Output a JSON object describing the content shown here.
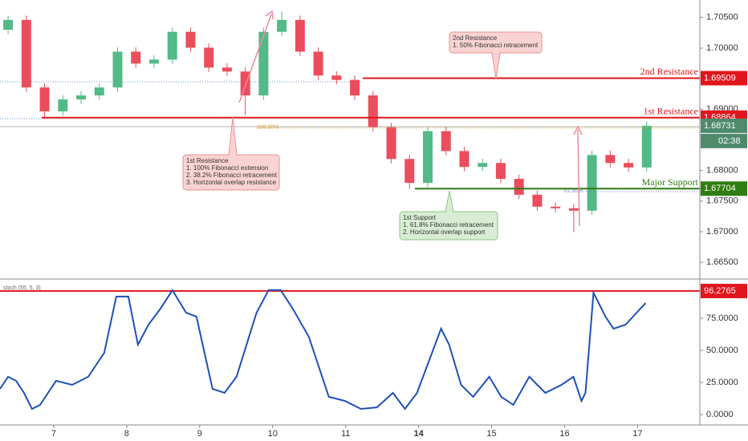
{
  "chart_data": [
    {
      "type": "candlestick",
      "x": [
        -0.625,
        -0.375,
        -0.125,
        0.125,
        0.375,
        0.625,
        0.875,
        1.125,
        1.375,
        1.625,
        1.875,
        2.125,
        2.375,
        2.625,
        2.875,
        3.125,
        3.375,
        3.625,
        3.875,
        4.125,
        4.375,
        4.625,
        4.875,
        5.125,
        5.375,
        5.625,
        5.875,
        6.125,
        6.375,
        6.625,
        6.875,
        7.125,
        7.375,
        7.625,
        7.875,
        8.125
      ],
      "open": [
        1.703,
        1.70461,
        1.69357,
        1.68967,
        1.69162,
        1.69227,
        1.69357,
        1.69942,
        1.69747,
        1.69812,
        1.70266,
        1.70007,
        1.69682,
        1.69617,
        1.69227,
        1.70266,
        1.70461,
        1.69942,
        1.69552,
        1.6948,
        1.69227,
        1.68708,
        1.68188,
        1.67798,
        1.68643,
        1.68318,
        1.68058,
        1.68123,
        1.67864,
        1.67604,
        1.67409,
        1.67383,
        1.67344,
        1.68253,
        1.68123,
        1.6805
      ],
      "high": [
        1.70531,
        1.70531,
        1.69427,
        1.69232,
        1.69297,
        1.69427,
        1.70012,
        1.70012,
        1.69882,
        1.70336,
        1.70336,
        1.70077,
        1.69752,
        1.69687,
        1.70336,
        1.706,
        1.70531,
        1.70012,
        1.69622,
        1.6955,
        1.69297,
        1.68778,
        1.68258,
        1.68713,
        1.68713,
        1.68388,
        1.68193,
        1.68193,
        1.67934,
        1.67674,
        1.67479,
        1.67453,
        1.68323,
        1.68323,
        1.68193,
        1.68801
      ],
      "low": [
        1.7023,
        1.69287,
        1.6885,
        1.68897,
        1.69092,
        1.69157,
        1.69287,
        1.69677,
        1.69677,
        1.69742,
        1.69937,
        1.69612,
        1.69547,
        1.68902,
        1.69157,
        1.70196,
        1.69872,
        1.69482,
        1.6941,
        1.69157,
        1.68638,
        1.68118,
        1.677,
        1.67728,
        1.68248,
        1.67988,
        1.67988,
        1.67794,
        1.67534,
        1.67339,
        1.67313,
        1.66993,
        1.67274,
        1.68053,
        1.6798,
        1.6798
      ],
      "close": [
        1.70461,
        1.69357,
        1.68967,
        1.69162,
        1.69227,
        1.69357,
        1.69942,
        1.69747,
        1.69812,
        1.70266,
        1.70007,
        1.69682,
        1.69617,
        1.69227,
        1.70266,
        1.70461,
        1.69942,
        1.69552,
        1.6948,
        1.69227,
        1.68708,
        1.68188,
        1.67798,
        1.68643,
        1.68318,
        1.68058,
        1.68123,
        1.67864,
        1.67604,
        1.67409,
        1.67383,
        1.67344,
        1.68253,
        1.68123,
        1.6805,
        1.68731
      ],
      "up_color": "#53b987",
      "down_color": "#eb4d5c",
      "xlim": [
        -0.736,
        8.853
      ],
      "xticks": [
        {
          "value": 0,
          "label": "7"
        },
        {
          "value": 1,
          "label": "8"
        },
        {
          "value": 2,
          "label": "9"
        },
        {
          "value": 3,
          "label": "10"
        },
        {
          "value": 4,
          "label": "11"
        },
        {
          "value": 5,
          "label": "14"
        },
        {
          "value": 6,
          "label": "15"
        },
        {
          "value": 7,
          "label": "16"
        },
        {
          "value": 8,
          "label": "17"
        }
      ],
      "ylim": [
        1.6624,
        1.70786
      ],
      "yticks": [
        {
          "value": 1.705,
          "label": "1.70500"
        },
        {
          "value": 1.7,
          "label": "1.70000"
        },
        {
          "value": 1.69,
          "label": "1.69000"
        },
        {
          "value": 1.68,
          "label": "1.68000"
        },
        {
          "value": 1.675,
          "label": "1.67500"
        },
        {
          "value": 1.67,
          "label": "1.67000"
        },
        {
          "value": 1.665,
          "label": "1.66500"
        }
      ],
      "levels": [
        {
          "name": "2nd Resistance",
          "value": 1.69509,
          "color": "#e0161c"
        },
        {
          "name": "1st Resistance",
          "value": 1.68864,
          "color": "#e0161c"
        },
        {
          "name": "Major Support",
          "value": 1.67704,
          "color": "#2f7d12"
        }
      ],
      "fib_levels": [
        {
          "label": "100.00%",
          "value": 1.68695,
          "color": "#e0a030"
        },
        {
          "label": "61.80%",
          "value": 1.67655,
          "color": "#6b8fd6"
        }
      ],
      "last_price": 1.68731,
      "countdown": "02:38",
      "annotations": [
        {
          "lines": [
            "2nd Resistance",
            "1. 50% Fibonacci retracement"
          ]
        },
        {
          "lines": [
            "1st Resistance",
            "1. 100% Fibonacci extension",
            "2. 38.2% Fibonacci retracement",
            "3. Horizontal overlap resistance"
          ]
        },
        {
          "lines": [
            "1st Support",
            "1. 61.8% Fibonacci retracement",
            "2. Horizontal overlap support"
          ]
        }
      ]
    },
    {
      "type": "line",
      "title": "stoch (55, 5, 3)",
      "x": [
        -0.736,
        -0.626,
        -0.516,
        -0.407,
        -0.297,
        -0.187,
        0.033,
        0.253,
        0.473,
        0.692,
        0.857,
        1.022,
        1.154,
        1.297,
        1.462,
        1.626,
        1.813,
        1.956,
        2.066,
        2.176,
        2.341,
        2.505,
        2.78,
        2.945,
        3.11,
        3.275,
        3.495,
        3.769,
        3.989,
        4.209,
        4.429,
        4.648,
        4.813,
        4.978,
        5.143,
        5.308,
        5.418,
        5.582,
        5.747,
        5.967,
        6.132,
        6.297,
        6.516,
        6.736,
        6.956,
        7.121,
        7.231,
        7.286,
        7.396,
        7.56,
        7.67,
        7.835,
        8.11
      ],
      "values": [
        20.0,
        29.4,
        26.3,
        16.9,
        4.4,
        7.5,
        26.3,
        23.1,
        29.4,
        48.1,
        91.9,
        91.9,
        54.4,
        70.0,
        82.5,
        96.9,
        79.4,
        76.3,
        48.1,
        20.0,
        16.9,
        29.4,
        79.4,
        97.0,
        97.0,
        82.5,
        60.6,
        13.8,
        10.6,
        4.4,
        5.6,
        16.9,
        4.4,
        16.9,
        41.9,
        66.9,
        54.4,
        23.1,
        13.8,
        29.4,
        13.8,
        7.5,
        29.4,
        16.9,
        23.1,
        29.4,
        10.6,
        16.9,
        95.0,
        76.3,
        66.9,
        70.0,
        86.9
      ],
      "color": "#1e50b8",
      "xlim": [
        -0.736,
        8.853
      ],
      "ylim": [
        -11.25,
        105.6
      ],
      "yticks": [
        {
          "value": 0,
          "label": "0.0000"
        },
        {
          "value": 25,
          "label": "25.0000"
        },
        {
          "value": 50,
          "label": "50.0000"
        },
        {
          "value": 75,
          "label": "75.0000"
        }
      ],
      "level": 96.2765,
      "level_color": "#e0161c"
    }
  ]
}
